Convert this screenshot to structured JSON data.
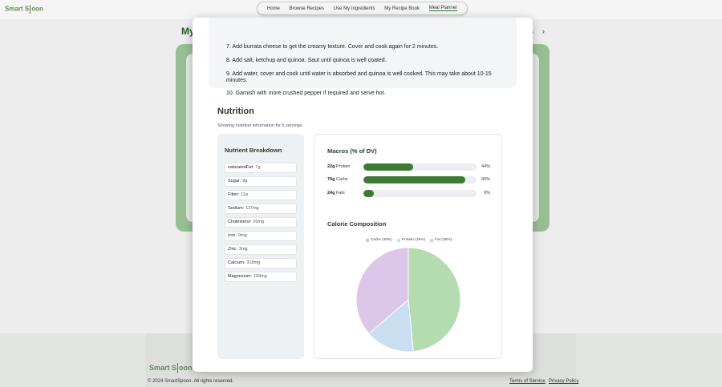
{
  "brand": {
    "name": "Smart Spoon",
    "left": "Smart S",
    "right": "oon"
  },
  "nav": {
    "items": [
      {
        "label": "Home",
        "active": false
      },
      {
        "label": "Browse Recipes",
        "active": false
      },
      {
        "label": "Use My Ingredients",
        "active": false
      },
      {
        "label": "My Recipe Book",
        "active": false
      },
      {
        "label": "Meal Planner",
        "active": true
      }
    ]
  },
  "page": {
    "title_partial": "My",
    "week_range_partial": "25",
    "next_arrow": "›"
  },
  "modal": {
    "steps": [
      "7. Add burrata cheese to get the creamy texture. Cover and cook again for 2 minutes.",
      "8. Add salt, ketchup and quinoa. Saut until quinoa is well coated.",
      "9. Add water, cover and cook until water is absorbed and quinoa is well cooked. This may take about 10-15",
      "minutes.",
      "10. Garnish with more crushed pepper if required and serve hot."
    ],
    "nutrition_title": "Nutrition",
    "showing_text": "Showing nutrition information for 5 servings",
    "breakdown": {
      "title": "Nutrient Breakdown",
      "items": [
        {
          "name": "saturatedFat:",
          "value": "7g"
        },
        {
          "name": "Sugar:",
          "value": "9g"
        },
        {
          "name": "Fiber:",
          "value": "11g"
        },
        {
          "name": "Sodium:",
          "value": "117mg"
        },
        {
          "name": "Cholesterol:",
          "value": "26mg"
        },
        {
          "name": "Iron:",
          "value": "9mg"
        },
        {
          "name": "Zinc:",
          "value": "3mg"
        },
        {
          "name": "Calcium:",
          "value": "318mg"
        },
        {
          "name": "Magnesium:",
          "value": "199mg"
        }
      ]
    },
    "macros": {
      "title": "Macros (% of DV)",
      "items": [
        {
          "amount": "22g",
          "name": "Protein",
          "percent": 44,
          "percent_label": "44%"
        },
        {
          "amount": "70g",
          "name": "Carbs",
          "percent": 90,
          "percent_label": "90%"
        },
        {
          "amount": "24g",
          "name": "Fats",
          "percent": 9,
          "percent_label": "9%"
        }
      ],
      "bar_color": "#3e7a36"
    },
    "calorie": {
      "title": "Calorie Composition",
      "legend": [
        {
          "label": "Carbs (48%)",
          "value": 48,
          "color": "#b5dcb0"
        },
        {
          "label": "Protein (15%)",
          "value": 15,
          "color": "#c9def0"
        },
        {
          "label": "Fat (36%)",
          "value": 36,
          "color": "#dcc7e8"
        }
      ]
    }
  },
  "footer": {
    "copyright": "© 2024 SmartSpoon. All rights reserved.",
    "terms": "Terms of Service",
    "privacy": "Privacy Policy"
  }
}
